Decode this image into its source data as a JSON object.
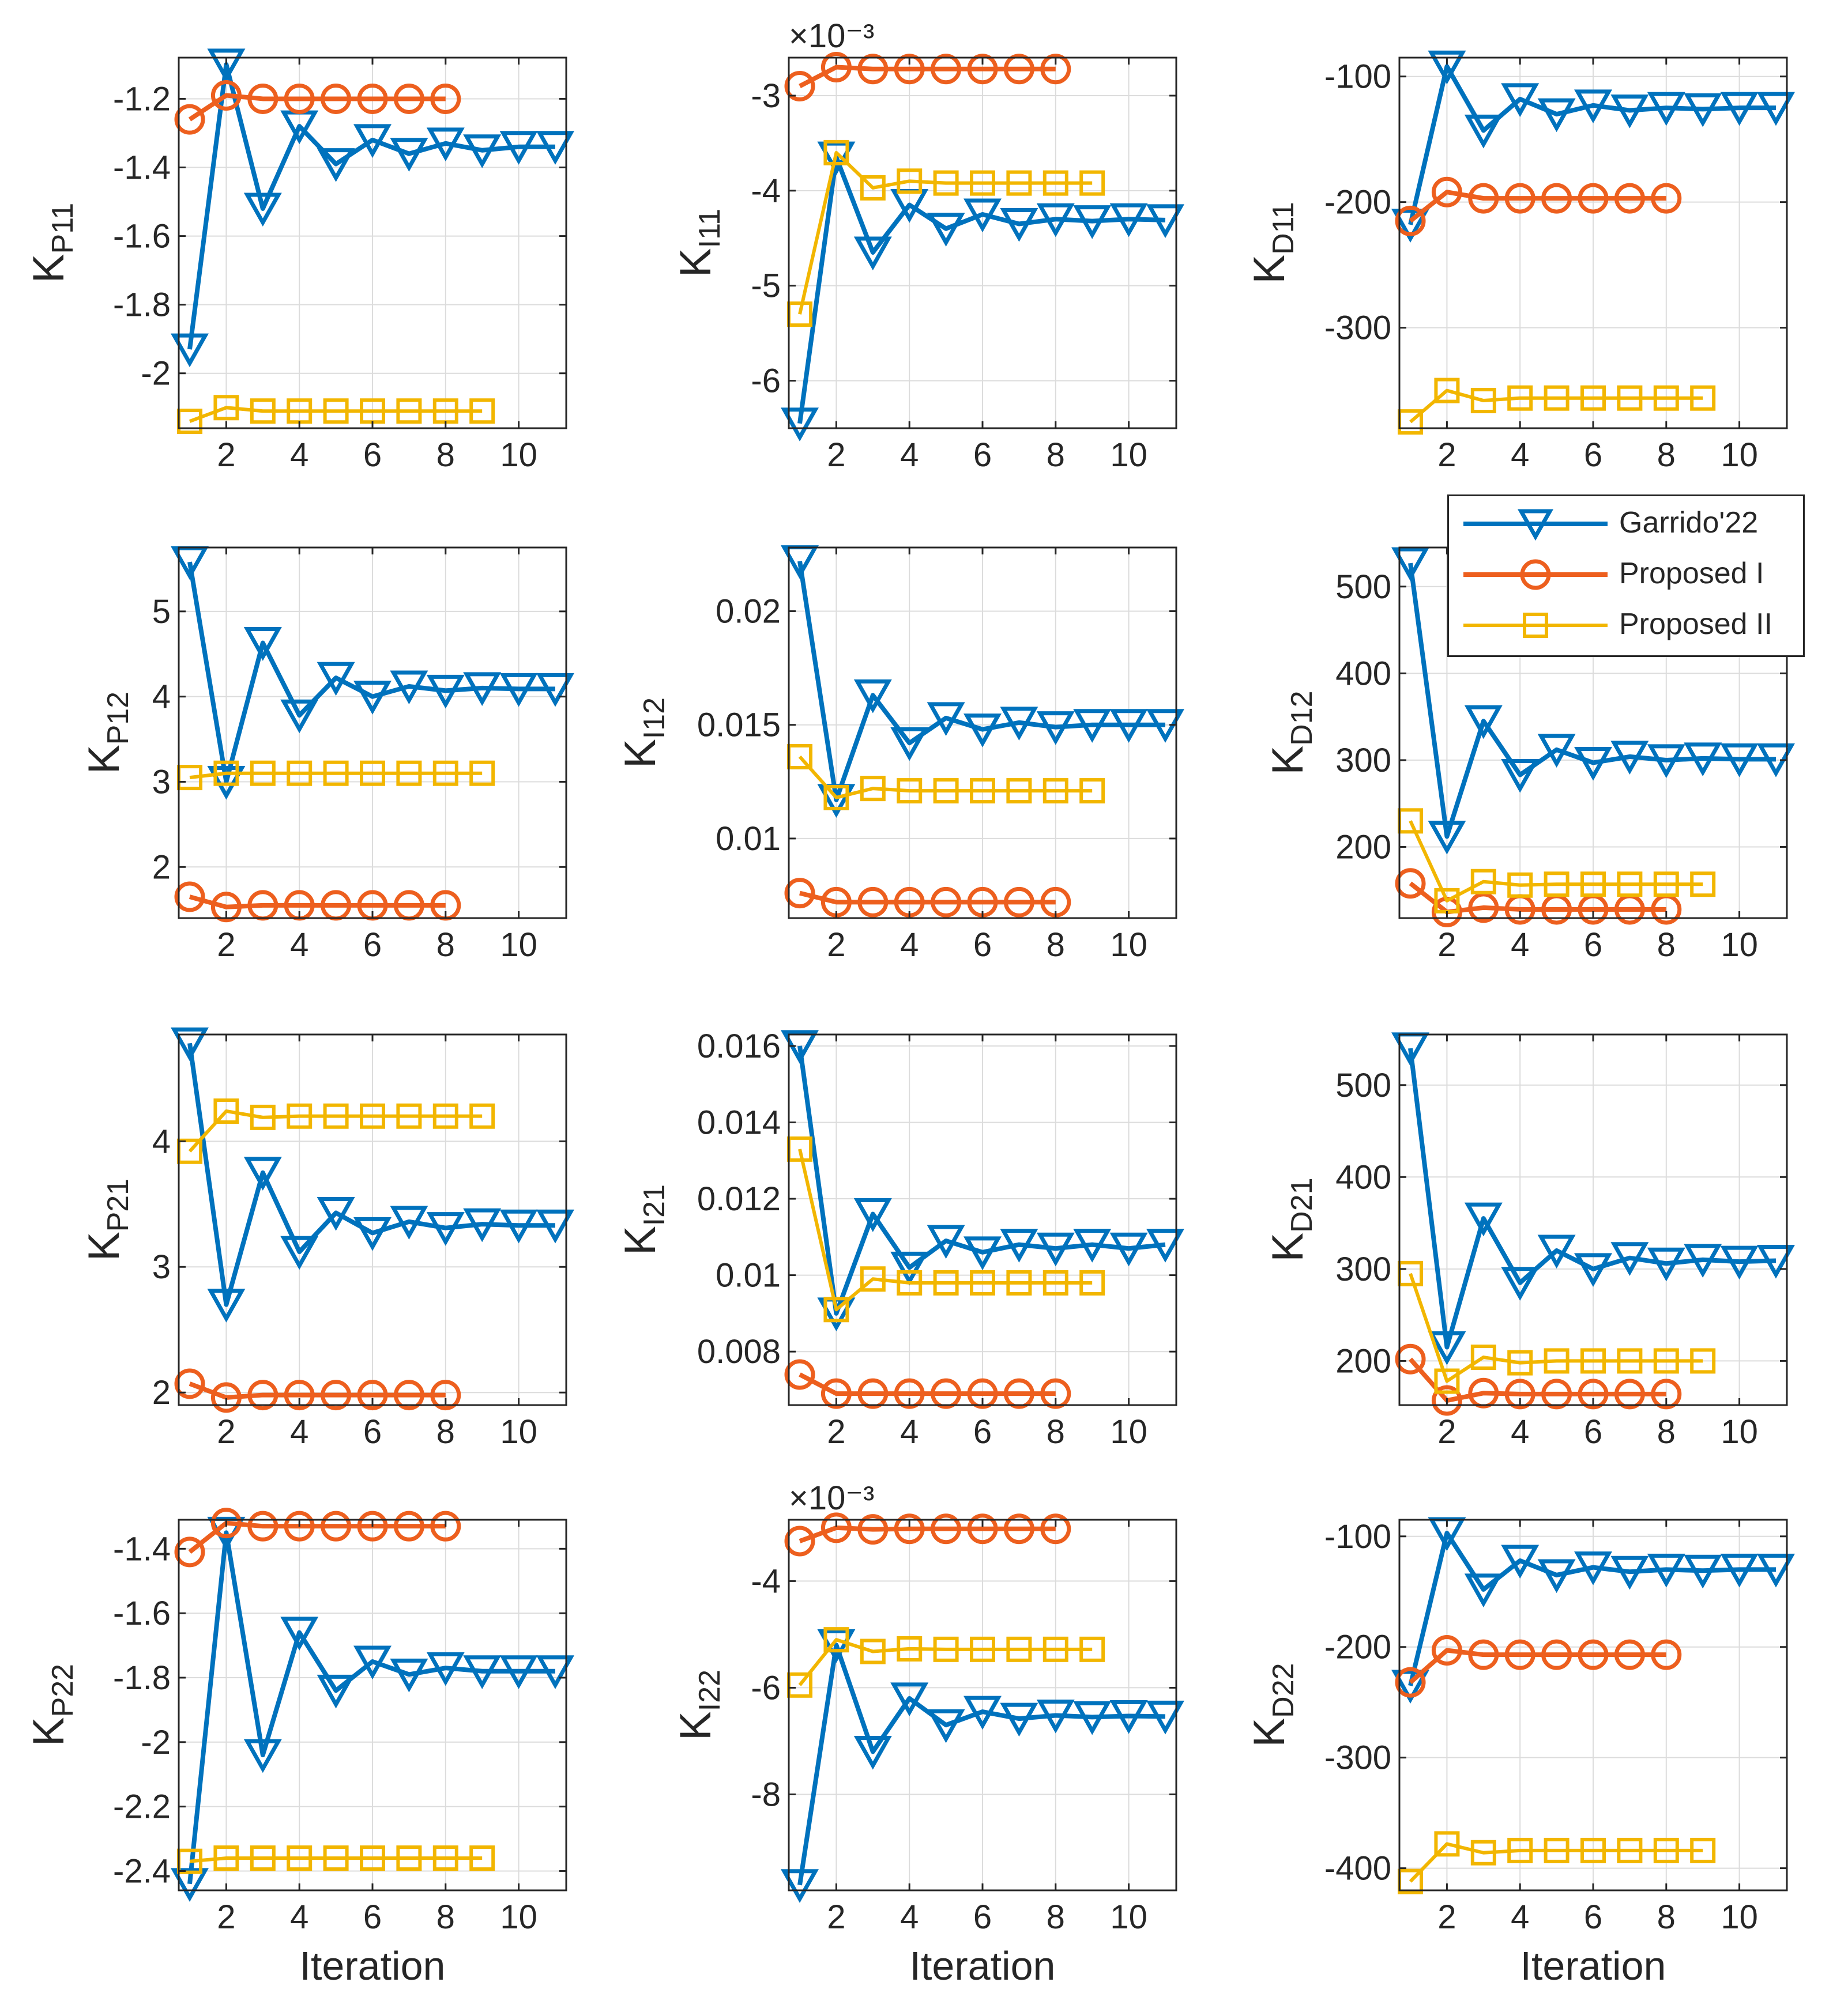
{
  "colors": {
    "garrido": "#0072BD",
    "proposed1": "#ED5F1E",
    "proposed2": "#F2B600",
    "axis": "#262626",
    "grid": "#dcdcdc"
  },
  "legend": [
    {
      "label": "Garrido'22",
      "series": "garrido",
      "marker": "triangle"
    },
    {
      "label": "Proposed I",
      "series": "proposed1",
      "marker": "circle"
    },
    {
      "label": "Proposed II",
      "series": "proposed2",
      "marker": "square"
    }
  ],
  "chart_data": [
    {
      "type": "line",
      "ylabel_main": "K",
      "ylabel_sub": "P11",
      "xlabel": "",
      "exponent": "",
      "xlim": [
        0.7,
        11.3
      ],
      "ylim": [
        -2.16,
        -1.08
      ],
      "xticks": [
        2,
        4,
        6,
        8,
        10
      ],
      "yticks": [
        -2,
        -1.8,
        -1.6,
        -1.4,
        -1.2
      ],
      "ytick_labels": [
        "-2",
        "-1.8",
        "-1.6",
        "-1.4",
        "-1.2"
      ],
      "series": [
        {
          "name": "Garrido'22",
          "key": "garrido",
          "values": [
            -1.93,
            -1.1,
            -1.52,
            -1.28,
            -1.39,
            -1.32,
            -1.36,
            -1.33,
            -1.35,
            -1.34,
            -1.34
          ]
        },
        {
          "name": "Proposed I",
          "key": "proposed1",
          "values": [
            -1.26,
            -1.19,
            -1.2,
            -1.2,
            -1.2,
            -1.2,
            -1.2,
            -1.2
          ]
        },
        {
          "name": "Proposed II",
          "key": "proposed2",
          "values": [
            -2.14,
            -2.1,
            -2.11,
            -2.11,
            -2.11,
            -2.11,
            -2.11,
            -2.11,
            -2.11
          ]
        }
      ]
    },
    {
      "type": "line",
      "ylabel_main": "K",
      "ylabel_sub": "I11",
      "xlabel": "",
      "exponent": "×10⁻³",
      "xlim": [
        0.7,
        11.3
      ],
      "ylim": [
        -6.5,
        -2.6
      ],
      "xticks": [
        2,
        4,
        6,
        8,
        10
      ],
      "yticks": [
        -6,
        -5,
        -4,
        -3
      ],
      "ytick_labels": [
        "-6",
        "-5",
        "-4",
        "-3"
      ],
      "series": [
        {
          "name": "Garrido'22",
          "key": "garrido",
          "values": [
            -6.45,
            -3.65,
            -4.65,
            -4.15,
            -4.4,
            -4.25,
            -4.35,
            -4.3,
            -4.32,
            -4.3,
            -4.31
          ]
        },
        {
          "name": "Proposed I",
          "key": "proposed1",
          "values": [
            -2.9,
            -2.7,
            -2.72,
            -2.72,
            -2.72,
            -2.72,
            -2.72,
            -2.72
          ]
        },
        {
          "name": "Proposed II",
          "key": "proposed2",
          "values": [
            -5.3,
            -3.6,
            -3.97,
            -3.9,
            -3.92,
            -3.92,
            -3.92,
            -3.92,
            -3.92
          ]
        }
      ]
    },
    {
      "type": "line",
      "ylabel_main": "K",
      "ylabel_sub": "D11",
      "xlabel": "",
      "exponent": "",
      "xlim": [
        0.7,
        11.3
      ],
      "ylim": [
        -380,
        -85
      ],
      "xticks": [
        2,
        4,
        6,
        8,
        10
      ],
      "yticks": [
        -300,
        -200,
        -100
      ],
      "ytick_labels": [
        "-300",
        "-200",
        "-100"
      ],
      "series": [
        {
          "name": "Garrido'22",
          "key": "garrido",
          "values": [
            -218,
            -92,
            -143,
            -118,
            -130,
            -123,
            -127,
            -125,
            -126,
            -125,
            -125
          ]
        },
        {
          "name": "Proposed I",
          "key": "proposed1",
          "values": [
            -215,
            -192,
            -197,
            -197,
            -197,
            -197,
            -197,
            -197
          ]
        },
        {
          "name": "Proposed II",
          "key": "proposed2",
          "values": [
            -375,
            -350,
            -358,
            -356,
            -356,
            -356,
            -356,
            -356,
            -356
          ]
        }
      ]
    },
    {
      "type": "line",
      "ylabel_main": "K",
      "ylabel_sub": "P12",
      "xlabel": "",
      "exponent": "",
      "xlim": [
        0.7,
        11.3
      ],
      "ylim": [
        1.4,
        5.75
      ],
      "xticks": [
        2,
        4,
        6,
        8,
        10
      ],
      "yticks": [
        2,
        3,
        4,
        5
      ],
      "ytick_labels": [
        "2",
        "3",
        "4",
        "5"
      ],
      "series": [
        {
          "name": "Garrido'22",
          "key": "garrido",
          "values": [
            5.58,
            3.0,
            4.63,
            3.78,
            4.22,
            4.0,
            4.12,
            4.07,
            4.1,
            4.09,
            4.09
          ]
        },
        {
          "name": "Proposed I",
          "key": "proposed1",
          "values": [
            1.65,
            1.53,
            1.55,
            1.55,
            1.55,
            1.55,
            1.55,
            1.55
          ]
        },
        {
          "name": "Proposed II",
          "key": "proposed2",
          "values": [
            3.05,
            3.1,
            3.1,
            3.1,
            3.1,
            3.1,
            3.1,
            3.1,
            3.1
          ]
        }
      ]
    },
    {
      "type": "line",
      "ylabel_main": "K",
      "ylabel_sub": "I12",
      "xlabel": "",
      "exponent": "",
      "xlim": [
        0.7,
        11.3
      ],
      "ylim": [
        0.0065,
        0.0228
      ],
      "xticks": [
        2,
        4,
        6,
        8,
        10
      ],
      "yticks": [
        0.01,
        0.015,
        0.02
      ],
      "ytick_labels": [
        "0.01",
        "0.015",
        "0.02"
      ],
      "series": [
        {
          "name": "Garrido'22",
          "key": "garrido",
          "values": [
            0.0222,
            0.0117,
            0.0163,
            0.0142,
            0.0153,
            0.0148,
            0.0151,
            0.0149,
            0.015,
            0.015,
            0.015
          ]
        },
        {
          "name": "Proposed I",
          "key": "proposed1",
          "values": [
            0.0076,
            0.0072,
            0.0072,
            0.0072,
            0.0072,
            0.0072,
            0.0072,
            0.0072
          ]
        },
        {
          "name": "Proposed II",
          "key": "proposed2",
          "values": [
            0.0136,
            0.0118,
            0.0122,
            0.0121,
            0.0121,
            0.0121,
            0.0121,
            0.0121,
            0.0121
          ]
        }
      ]
    },
    {
      "type": "line",
      "ylabel_main": "K",
      "ylabel_sub": "D12",
      "xlabel": "",
      "exponent": "",
      "xlim": [
        0.7,
        11.3
      ],
      "ylim": [
        118,
        545
      ],
      "xticks": [
        2,
        4,
        6,
        8,
        10
      ],
      "yticks": [
        200,
        300,
        400,
        500
      ],
      "ytick_labels": [
        "200",
        "300",
        "400",
        "500"
      ],
      "series": [
        {
          "name": "Garrido'22",
          "key": "garrido",
          "values": [
            527,
            212,
            345,
            283,
            312,
            297,
            304,
            300,
            302,
            301,
            301
          ]
        },
        {
          "name": "Proposed I",
          "key": "proposed1",
          "values": [
            158,
            125,
            130,
            128,
            128,
            128,
            128,
            128
          ]
        },
        {
          "name": "Proposed II",
          "key": "proposed2",
          "values": [
            230,
            138,
            160,
            156,
            157,
            157,
            157,
            157,
            157
          ]
        }
      ]
    },
    {
      "type": "line",
      "ylabel_main": "K",
      "ylabel_sub": "P21",
      "xlabel": "",
      "exponent": "",
      "xlim": [
        0.7,
        11.3
      ],
      "ylim": [
        1.9,
        4.85
      ],
      "xticks": [
        2,
        4,
        6,
        8,
        10
      ],
      "yticks": [
        2,
        3,
        4
      ],
      "ytick_labels": [
        "2",
        "3",
        "4"
      ],
      "series": [
        {
          "name": "Garrido'22",
          "key": "garrido",
          "values": [
            4.78,
            2.7,
            3.75,
            3.12,
            3.43,
            3.27,
            3.36,
            3.31,
            3.34,
            3.33,
            3.33
          ]
        },
        {
          "name": "Proposed I",
          "key": "proposed1",
          "values": [
            2.07,
            1.96,
            1.98,
            1.98,
            1.98,
            1.98,
            1.98,
            1.98
          ]
        },
        {
          "name": "Proposed II",
          "key": "proposed2",
          "values": [
            3.92,
            4.24,
            4.19,
            4.2,
            4.2,
            4.2,
            4.2,
            4.2,
            4.2
          ]
        }
      ]
    },
    {
      "type": "line",
      "ylabel_main": "K",
      "ylabel_sub": "I21",
      "xlabel": "",
      "exponent": "",
      "xlim": [
        0.7,
        11.3
      ],
      "ylim": [
        0.0066,
        0.0163
      ],
      "xticks": [
        2,
        4,
        6,
        8,
        10
      ],
      "yticks": [
        0.008,
        0.01,
        0.012,
        0.014,
        0.016
      ],
      "ytick_labels": [
        "0.008",
        "0.01",
        "0.012",
        "0.014",
        "0.016"
      ],
      "series": [
        {
          "name": "Garrido'22",
          "key": "garrido",
          "values": [
            0.016,
            0.009,
            0.0116,
            0.0102,
            0.0109,
            0.0106,
            0.0108,
            0.0107,
            0.0108,
            0.0107,
            0.0108
          ]
        },
        {
          "name": "Proposed I",
          "key": "proposed1",
          "values": [
            0.0074,
            0.0069,
            0.0069,
            0.0069,
            0.0069,
            0.0069,
            0.0069,
            0.0069
          ]
        },
        {
          "name": "Proposed II",
          "key": "proposed2",
          "values": [
            0.0133,
            0.0091,
            0.0099,
            0.0098,
            0.0098,
            0.0098,
            0.0098,
            0.0098,
            0.0098
          ]
        }
      ]
    },
    {
      "type": "line",
      "ylabel_main": "K",
      "ylabel_sub": "D21",
      "xlabel": "",
      "exponent": "",
      "xlim": [
        0.7,
        11.3
      ],
      "ylim": [
        152,
        555
      ],
      "xticks": [
        2,
        4,
        6,
        8,
        10
      ],
      "yticks": [
        200,
        300,
        400,
        500
      ],
      "ytick_labels": [
        "200",
        "300",
        "400",
        "500"
      ],
      "series": [
        {
          "name": "Garrido'22",
          "key": "garrido",
          "values": [
            540,
            215,
            355,
            285,
            320,
            300,
            312,
            306,
            310,
            308,
            309
          ]
        },
        {
          "name": "Proposed I",
          "key": "proposed1",
          "values": [
            202,
            157,
            165,
            164,
            164,
            164,
            164,
            164
          ]
        },
        {
          "name": "Proposed II",
          "key": "proposed2",
          "values": [
            295,
            178,
            204,
            198,
            200,
            200,
            200,
            200,
            200
          ]
        }
      ]
    },
    {
      "type": "line",
      "ylabel_main": "K",
      "ylabel_sub": "P22",
      "xlabel": "Iteration",
      "exponent": "",
      "xlim": [
        0.7,
        11.3
      ],
      "ylim": [
        -2.46,
        -1.31
      ],
      "xticks": [
        2,
        4,
        6,
        8,
        10
      ],
      "yticks": [
        -2.4,
        -2.2,
        -2,
        -1.8,
        -1.6,
        -1.4
      ],
      "ytick_labels": [
        "-2.4",
        "-2.2",
        "-2",
        "-1.8",
        "-1.6",
        "-1.4"
      ],
      "series": [
        {
          "name": "Garrido'22",
          "key": "garrido",
          "values": [
            -2.44,
            -1.35,
            -2.04,
            -1.66,
            -1.84,
            -1.75,
            -1.79,
            -1.77,
            -1.78,
            -1.78,
            -1.78
          ]
        },
        {
          "name": "Proposed I",
          "key": "proposed1",
          "values": [
            -1.41,
            -1.32,
            -1.33,
            -1.33,
            -1.33,
            -1.33,
            -1.33,
            -1.33
          ]
        },
        {
          "name": "Proposed II",
          "key": "proposed2",
          "values": [
            -2.37,
            -2.36,
            -2.36,
            -2.36,
            -2.36,
            -2.36,
            -2.36,
            -2.36,
            -2.36
          ]
        }
      ]
    },
    {
      "type": "line",
      "ylabel_main": "K",
      "ylabel_sub": "I22",
      "xlabel": "Iteration",
      "exponent": "×10⁻³",
      "xlim": [
        0.7,
        11.3
      ],
      "ylim": [
        -9.8,
        -2.85
      ],
      "xticks": [
        2,
        4,
        6,
        8,
        10
      ],
      "yticks": [
        -8,
        -6,
        -4
      ],
      "ytick_labels": [
        "-8",
        "-6",
        "-4"
      ],
      "series": [
        {
          "name": "Garrido'22",
          "key": "garrido",
          "values": [
            -9.7,
            -5.2,
            -7.2,
            -6.2,
            -6.7,
            -6.45,
            -6.58,
            -6.52,
            -6.55,
            -6.53,
            -6.54
          ]
        },
        {
          "name": "Proposed I",
          "key": "proposed1",
          "values": [
            -3.25,
            -3.0,
            -3.03,
            -3.02,
            -3.02,
            -3.02,
            -3.02,
            -3.02
          ]
        },
        {
          "name": "Proposed II",
          "key": "proposed2",
          "values": [
            -5.95,
            -5.1,
            -5.32,
            -5.27,
            -5.28,
            -5.28,
            -5.28,
            -5.28,
            -5.28
          ]
        }
      ]
    },
    {
      "type": "line",
      "ylabel_main": "K",
      "ylabel_sub": "D22",
      "xlabel": "Iteration",
      "exponent": "",
      "xlim": [
        0.7,
        11.3
      ],
      "ylim": [
        -420,
        -85
      ],
      "xticks": [
        2,
        4,
        6,
        8,
        10
      ],
      "yticks": [
        -400,
        -300,
        -200,
        -100
      ],
      "ytick_labels": [
        "-400",
        "-300",
        "-200",
        "-100"
      ],
      "series": [
        {
          "name": "Garrido'22",
          "key": "garrido",
          "values": [
            -235,
            -97,
            -148,
            -122,
            -135,
            -128,
            -132,
            -130,
            -131,
            -130,
            -130
          ]
        },
        {
          "name": "Proposed I",
          "key": "proposed1",
          "values": [
            -232,
            -203,
            -207,
            -207,
            -207,
            -207,
            -207,
            -207
          ]
        },
        {
          "name": "Proposed II",
          "key": "proposed2",
          "values": [
            -412,
            -378,
            -386,
            -384,
            -384,
            -384,
            -384,
            -384,
            -384
          ]
        }
      ]
    }
  ]
}
